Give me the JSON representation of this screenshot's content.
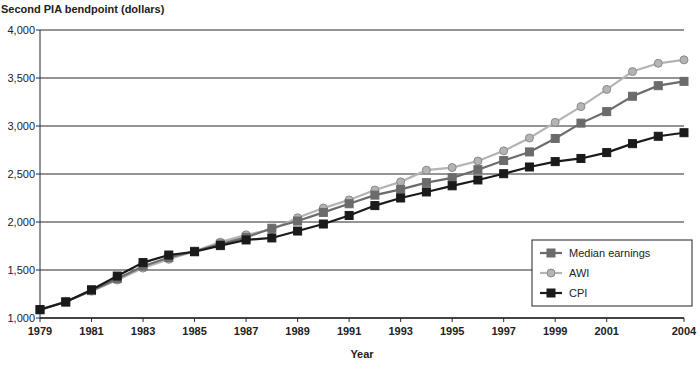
{
  "chart_data": {
    "type": "line",
    "y_label": "Second PIA bendpoint (dollars)",
    "x_label": "Year",
    "x": [
      1979,
      1980,
      1981,
      1982,
      1983,
      1984,
      1985,
      1986,
      1987,
      1988,
      1989,
      1990,
      1991,
      1992,
      1993,
      1994,
      1995,
      1996,
      1997,
      1998,
      1999,
      2000,
      2001,
      2002,
      2003,
      2004
    ],
    "series": [
      {
        "name": "Median earnings",
        "color": "#6b6b6b",
        "marker": "square",
        "line_style": "solid",
        "values": [
          1085,
          1170,
          1285,
          1410,
          1540,
          1630,
          1695,
          1770,
          1840,
          1935,
          2010,
          2100,
          2190,
          2280,
          2340,
          2410,
          2460,
          2545,
          2640,
          2730,
          2870,
          3030,
          3150,
          3310,
          3420,
          3465
        ]
      },
      {
        "name": "AWI",
        "color": "#b4b4b4",
        "marker": "circle",
        "line_style": "solid",
        "values": [
          1085,
          1175,
          1280,
          1396,
          1520,
          1612,
          1696,
          1790,
          1866,
          1922,
          2044,
          2145,
          2230,
          2333,
          2418,
          2540,
          2567,
          2635,
          2741,
          2875,
          3038,
          3202,
          3381,
          3567,
          3653,
          3689
        ]
      },
      {
        "name": "CPI",
        "color": "#1a1a1a",
        "marker": "square",
        "line_style": "solid",
        "values": [
          1088,
          1166,
          1294,
          1437,
          1577,
          1656,
          1690,
          1754,
          1813,
          1834,
          1906,
          1979,
          2068,
          2171,
          2250,
          2313,
          2377,
          2438,
          2503,
          2573,
          2629,
          2662,
          2723,
          2816,
          2893,
          2930
        ]
      }
    ],
    "xlim": [
      1979,
      2004
    ],
    "xticks": [
      1979,
      1981,
      1983,
      1985,
      1987,
      1989,
      1991,
      1993,
      1995,
      1997,
      1999,
      2001,
      2004
    ],
    "ylim": [
      1000,
      4000
    ],
    "yticks": [
      {
        "value": 1000,
        "label": "1,000"
      },
      {
        "value": 1500,
        "label": "1,500"
      },
      {
        "value": 2000,
        "label": "2,000"
      },
      {
        "value": 2500,
        "label": "2,500"
      },
      {
        "value": 3000,
        "label": "3,000"
      },
      {
        "value": 3500,
        "label": "3,500"
      },
      {
        "value": 4000,
        "label": "4,000"
      }
    ],
    "grid": true,
    "legend": "lower right"
  }
}
